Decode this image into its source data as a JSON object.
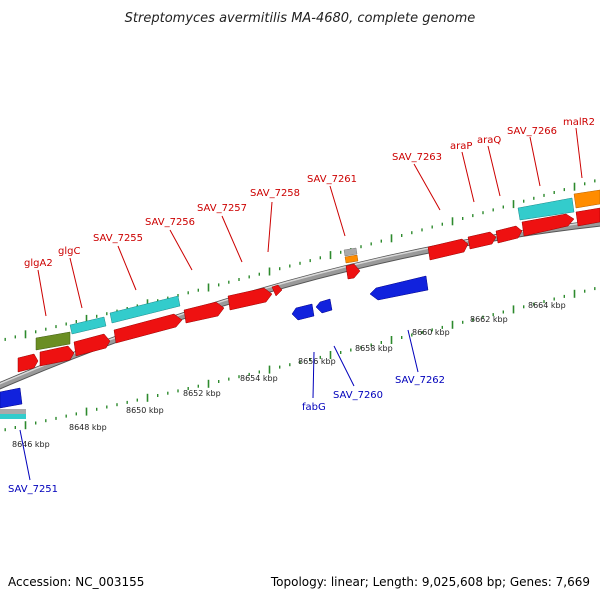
{
  "map": {
    "title": "Streptomyces avermitilis MA-4680, complete genome",
    "accession": "Accession: NC_003155",
    "topology": "Topology: linear; Length: 9,025,608 bp; Genes: 7,669"
  },
  "colors": {
    "forward_label": "#cc0000",
    "reverse_label": "#0000bb",
    "backbone": "#888888",
    "tick": "#2d8a2d",
    "red_gene": "#ee1111",
    "blue_gene": "#1122dd",
    "cyan_gene": "#33cccc",
    "olive_gene": "#6b8e23",
    "orange_gene": "#ff8c00",
    "gray_gene": "#aaaaaa"
  },
  "kbp_labels": [
    "8646 kbp",
    "8648 kbp",
    "8650 kbp",
    "8652 kbp",
    "8654 kbp",
    "8656 kbp",
    "8658 kbp",
    "8660 kbp",
    "8662 kbp",
    "8664 kbp"
  ],
  "forward_labels": [
    "glgA2",
    "glgC",
    "SAV_7255",
    "SAV_7256",
    "SAV_7257",
    "SAV_7258",
    "SAV_7261",
    "SAV_7263",
    "araP",
    "araQ",
    "SAV_7266",
    "malR2"
  ],
  "reverse_labels": [
    "SAV_7251",
    "fabG",
    "SAV_7260",
    "SAV_7262"
  ]
}
